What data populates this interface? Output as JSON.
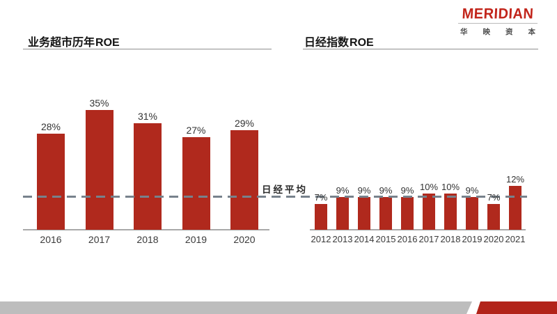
{
  "logo": {
    "brand": "MERIDIAN",
    "subtitle": "华映资本"
  },
  "reference_line": {
    "label": "日经平均",
    "value_percent": 9,
    "style": "dashed"
  },
  "colors": {
    "bar": "#B0291D",
    "axis": "#A8A8A8",
    "dashed_line": "#77828C",
    "logo_red": "#C2251B",
    "footer_gray": "#BDBDBD",
    "footer_red": "#B2241A",
    "label_text": "#333333"
  },
  "chart_data": [
    {
      "type": "bar",
      "title": "业务超市历年ROE",
      "title_cn": "业务超市历年",
      "title_en": "ROE",
      "categories": [
        "2016",
        "2017",
        "2018",
        "2019",
        "2020"
      ],
      "values": [
        28,
        35,
        31,
        27,
        29
      ],
      "data_labels": [
        "28%",
        "35%",
        "31%",
        "27%",
        "29%"
      ],
      "unit": "%",
      "xlabel": "",
      "ylabel": "",
      "ylim": [
        0,
        40
      ],
      "grid": false,
      "legend": false
    },
    {
      "type": "bar",
      "title": "日经指数ROE",
      "title_cn": "日经指数",
      "title_en": "ROE",
      "categories": [
        "2012",
        "2013",
        "2014",
        "2015",
        "2016",
        "2017",
        "2018",
        "2019",
        "2020",
        "2021"
      ],
      "values": [
        7,
        9,
        9,
        9,
        9,
        10,
        10,
        9,
        7,
        12
      ],
      "data_labels": [
        "7%",
        "9%",
        "9%",
        "9%",
        "9%",
        "10%",
        "10%",
        "9%",
        "7%",
        "12%"
      ],
      "unit": "%",
      "xlabel": "",
      "ylabel": "",
      "ylim": [
        0,
        40
      ],
      "grid": false,
      "legend": false
    }
  ]
}
